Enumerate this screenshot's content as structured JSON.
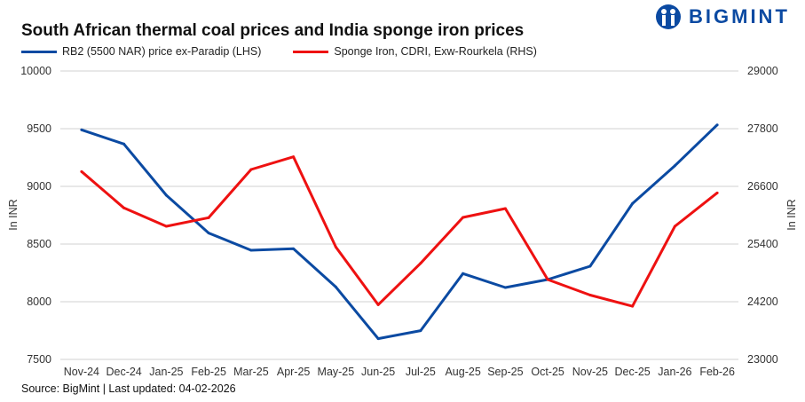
{
  "logo": {
    "text": "BIGMINT"
  },
  "source": "Source: BigMint | Last updated: 04-02-2026",
  "chart_data": {
    "type": "line",
    "title": "South African thermal coal prices and India sponge iron prices",
    "categories": [
      "Nov-24",
      "Dec-24",
      "Jan-25",
      "Feb-25",
      "Mar-25",
      "Apr-25",
      "May-25",
      "Jun-25",
      "Jul-25",
      "Aug-25",
      "Sep-25",
      "Oct-25",
      "Nov-25",
      "Dec-25",
      "Jan-26",
      "Feb-26"
    ],
    "ylabel_left": "In INR",
    "ylabel_right": "In INR",
    "ylim_left": [
      7500,
      10000
    ],
    "yticks_left": [
      "7500",
      "8000",
      "8500",
      "9000",
      "9500",
      "10000"
    ],
    "ylim_right": [
      23000,
      29000
    ],
    "yticks_right": [
      "23000",
      "24200",
      "25400",
      "26600",
      "27800",
      "29000"
    ],
    "grid": true,
    "legend_position": "top-left",
    "series": [
      {
        "name": "RB2 (5500 NAR) price ex-Paradip (LHS)",
        "axis": "left",
        "color": "#0b4aa2",
        "values": [
          9490,
          9367,
          8923,
          8595,
          8446,
          8459,
          8128,
          7680,
          7749,
          8244,
          8123,
          8192,
          8308,
          8851,
          9179,
          9533
        ]
      },
      {
        "name": "Sponge Iron, CDRI, Exw-Rourkela (RHS)",
        "axis": "right",
        "color": "#ee1111",
        "values": [
          26908,
          26151,
          25769,
          25948,
          26951,
          27215,
          25338,
          24138,
          25000,
          25954,
          26138,
          24662,
          24338,
          24105,
          25769,
          26465
        ]
      }
    ]
  }
}
